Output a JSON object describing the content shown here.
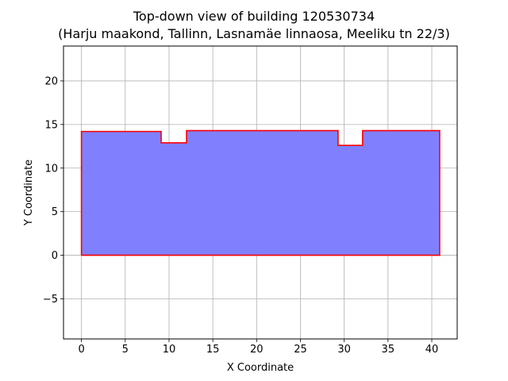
{
  "chart_data": {
    "type": "area",
    "title": "Top-down view of building 120530734",
    "subtitle": "(Harju maakond, Tallinn, Lasnamäe linnaosa, Meeliku tn 22/3)",
    "xlabel": "X Coordinate",
    "ylabel": "Y Coordinate",
    "xlim": [
      -2.05,
      42.9
    ],
    "ylim": [
      -9.6,
      24
    ],
    "xticks": [
      0,
      5,
      10,
      15,
      20,
      25,
      30,
      35,
      40
    ],
    "yticks": [
      -5,
      0,
      5,
      10,
      15,
      20
    ],
    "grid": true,
    "series": [
      {
        "fill_color": "#8080ff",
        "edge_color": "#ff0000",
        "points": [
          [
            0,
            0
          ],
          [
            40.9,
            0
          ],
          [
            40.9,
            14.3
          ],
          [
            32.1,
            14.3
          ],
          [
            32.1,
            12.6
          ],
          [
            29.3,
            12.6
          ],
          [
            29.3,
            14.3
          ],
          [
            12.0,
            14.3
          ],
          [
            12.0,
            12.9
          ],
          [
            9.1,
            12.9
          ],
          [
            9.1,
            14.2
          ],
          [
            0,
            14.2
          ],
          [
            0,
            0
          ]
        ]
      }
    ]
  }
}
